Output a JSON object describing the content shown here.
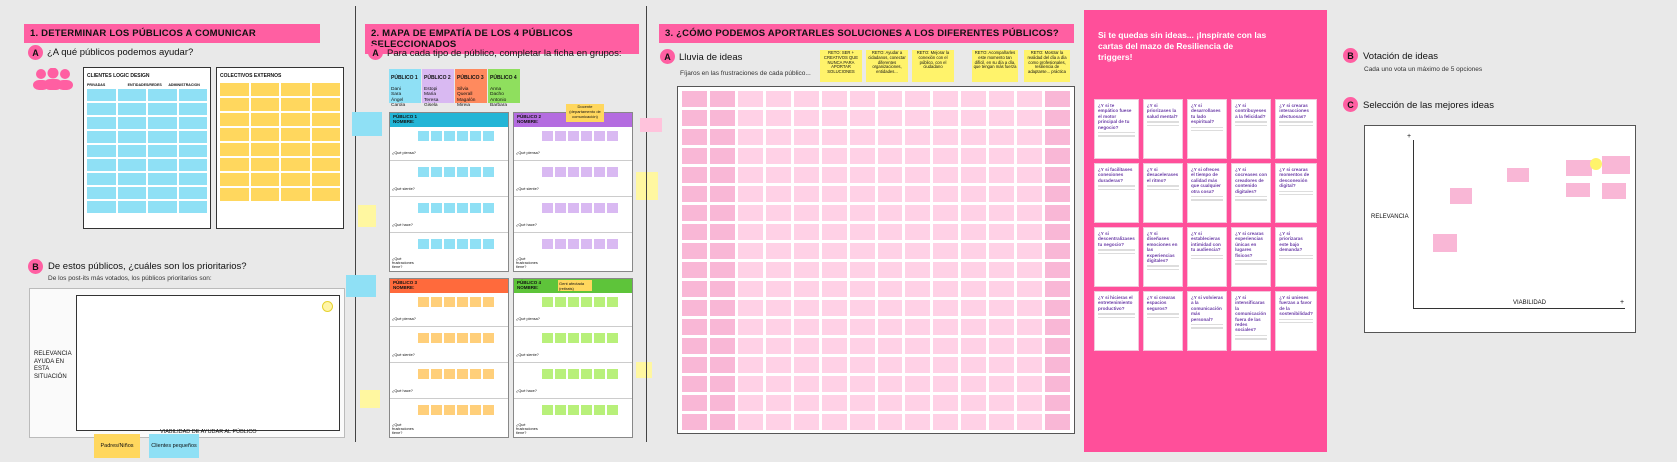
{
  "section1": {
    "title": "1. DETERMINAR LOS PÚBLICOS A COMUNICAR",
    "a_letter": "A",
    "a_question": "¿A qué públicos podemos ayudar?",
    "clientes_title": "CLIENTES LOGIC DESIGN",
    "clientes_cols": [
      "PRIVADAS",
      "ENTIDADES/REDES",
      "ADMINISTRACION"
    ],
    "colectivos_title": "COLECTIVOS EXTERNOS",
    "b_letter": "B",
    "b_question": "De estos públicos, ¿cuáles son los prioritarios?",
    "b_sub": "De los post-its más votados, los públicos prioritarios son:",
    "y_axis_label": "RELEVANCIA AYUDA EN ESTA SITUACIÓN",
    "x_axis_label": "VIABILIDAD DE AYUDAR AL PÚBLICO",
    "legend_yellow": "Padres/Niños",
    "legend_blue": "Clientes pequeños"
  },
  "section2": {
    "title": "2. MAPA DE EMPATÍA DE LOS 4 PÚBLICOS SELECCIONADOS",
    "a_letter": "A",
    "a_question": "Para cada tipo de público, completar la ficha en grupos:",
    "groups": [
      {
        "label": "PÚBLICO 1",
        "names": "Dani\nSara\nÁngel\nCarola"
      },
      {
        "label": "PÚBLICO 2",
        "names": "Estopi\nMaria\nTeresa\nGisela"
      },
      {
        "label": "PÚBLICO 3",
        "names": "Silvia\nQuerall\nMagalón\nMireia"
      },
      {
        "label": "PÚBLICO 4",
        "names": "Anna\nDacho\nAntonio\nBarbara"
      }
    ],
    "maps": [
      {
        "header": "PÚBLICO 1\nNOMBRE:",
        "color": "#23b5d6"
      },
      {
        "header": "PÚBLICO 2\nNOMBRE:",
        "color": "#b46ce0"
      },
      {
        "header": "PÚBLICO 3\nNOMBRE:",
        "color": "#ff6a3c"
      },
      {
        "header": "PÚBLICO 4\nNOMBRE:",
        "color": "#5ec43a"
      }
    ],
    "rows": [
      "¿Qué piensa?",
      "¿Qué siente?",
      "¿Qué hace?",
      "¿Qué frustraciones tiene?"
    ],
    "map2_note": "Docente (departamento de comunicación)",
    "map4_note": "Gent afectada (retirats)"
  },
  "section3": {
    "title": "3. ¿CÓMO PODEMOS APORTARLES SOLUCIONES A LOS DIFERENTES PÚBLICOS?",
    "a_letter": "A",
    "a_label": "Lluvia de ideas",
    "a_sub": "Fíjaros en las frustraciones de cada público...",
    "retos": [
      "RETO: SER + CREATIVOS QUE NUNCA PARA APORTAR SOLUCIONES",
      "RETO: Ayudar a cidadanos, conectar diferentes organizaciones, entidades...",
      "RETO: Mejorar la conexión con el público, con el ciudadano",
      "RETO: Acompañarles este momento tan difícil, en su día a día, que tengan más fuerza",
      "RETO: Mostrar la realidad del día a día como profesionales, resiliencia de adaptarse... práctica"
    ],
    "triggers_title": "Si te quedas sin ideas... ¡Inspírate con las cartas del mazo de Resiliencia de triggers!",
    "trigger_cards": [
      "¿Y si te empático fuese el motor principal de tu negocio?",
      "¿Y si priorizases la salud mental?",
      "¿Y si desarrollases tu lado espiritual?",
      "¿Y si contribuyeses a la felicidad?",
      "¿Y si crearas interacciones afectuosas?",
      "¿Y si facilitases conexiones duraderas?",
      "¿Y si desacelerases el ritmo?",
      "¿Y si ofreces el tiempo de calidad más que cualquier otra cosa?",
      "¿Y si cocreases con creadores de contenido digitales?",
      "¿Y si crearas momentos de desconexión digital?",
      "¿Y si descentralizases tu negocio?",
      "¿Y si diseñases emociones en las experiencias digitales?",
      "¿Y si establecieras intimidad con tu audiencia?",
      "¿Y si crearas experiencias únicas en lugares físicos?",
      "¿Y si priorizaras este bajo demanda?",
      "¿Y si hicieras el entretenimiento productivo?",
      "¿Y si crearas espacios seguros?",
      "¿Y si volvieras a la comunicación más personal?",
      "¿Y si intensificaras la comunicación fuera de las redes sociales?",
      "¿Y si unieses fuerzas a favor de la sostenibilidad?"
    ],
    "b_letter": "B",
    "b_label": "Votación de ideas",
    "b_sub": "Cada uno vota un máximo de 5 opciones",
    "c_letter": "C",
    "c_label": "Selección de las mejores ideas",
    "y_axis": "RELEVANCIA",
    "x_axis": "VIABILIDAD",
    "plus": "+"
  },
  "colors": {
    "pink": "#ff5fa2",
    "trigger_pink": "#ff4f9a",
    "yellow": "#ffd75e",
    "cyan": "#8fe0f5"
  }
}
